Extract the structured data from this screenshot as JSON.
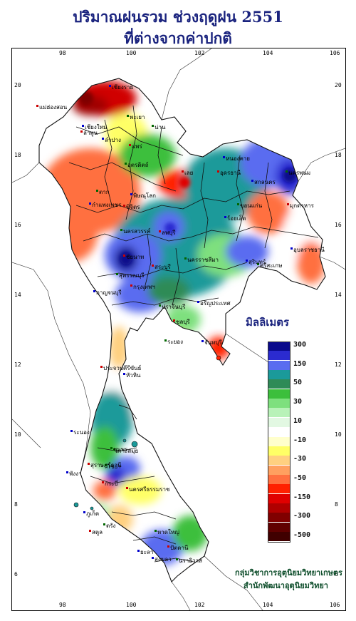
{
  "title_line1": "ปริมาณฝนรวม ช่วงฤดูฝน 2551",
  "title_line2": "ที่ต่างจากค่าปกติ",
  "lon_ticks": [
    "98",
    "100",
    "102",
    "104",
    "106"
  ],
  "lat_ticks": [
    "20",
    "18",
    "16",
    "14",
    "12",
    "10",
    "8",
    "6"
  ],
  "legend": {
    "title": "มิลลิเมตร",
    "classes": [
      {
        "label": "300",
        "color": "#0a0a8c"
      },
      {
        "label": "",
        "color": "#2b2bd0"
      },
      {
        "label": "150",
        "color": "#5a6cf0"
      },
      {
        "label": "",
        "color": "#1b9a9a"
      },
      {
        "label": "50",
        "color": "#2e8b57"
      },
      {
        "label": "",
        "color": "#3cbf3c"
      },
      {
        "label": "30",
        "color": "#7ee07e"
      },
      {
        "label": "",
        "color": "#b8f2b8"
      },
      {
        "label": "10",
        "color": "#e2f8e2"
      },
      {
        "label": "",
        "color": "#ffffff"
      },
      {
        "label": "-10",
        "color": "#ffffcc"
      },
      {
        "label": "",
        "color": "#ffff66"
      },
      {
        "label": "-30",
        "color": "#ffd080"
      },
      {
        "label": "",
        "color": "#ffa060"
      },
      {
        "label": "-50",
        "color": "#ff7040"
      },
      {
        "label": "",
        "color": "#ff2000"
      },
      {
        "label": "-150",
        "color": "#e00000"
      },
      {
        "label": "",
        "color": "#b00000"
      },
      {
        "label": "-300",
        "color": "#800000"
      },
      {
        "label": "",
        "color": "#600000"
      },
      {
        "label": "-500",
        "color": "#400000"
      }
    ]
  },
  "credit_line1": "กลุ่มวิชาการอุตุนิยมวิทยาเกษตร",
  "credit_line2": "สำนักพัฒนาอุตุนิยมวิทยา",
  "places": [
    {
      "name": "เชียงราย"
    },
    {
      "name": "แม่ฮ่องสอน"
    },
    {
      "name": "พะเยา"
    },
    {
      "name": "เชียงใหม่"
    },
    {
      "name": "ลำพูน"
    },
    {
      "name": "น่าน"
    },
    {
      "name": "ลำปาง"
    },
    {
      "name": "แพร่"
    },
    {
      "name": "อุตรดิตถ์"
    },
    {
      "name": "หนองคาย"
    },
    {
      "name": "อุดรธานี"
    },
    {
      "name": "นครพนม"
    },
    {
      "name": "สกลนคร"
    },
    {
      "name": "เลย"
    },
    {
      "name": "ตาก"
    },
    {
      "name": "พิษณุโลก"
    },
    {
      "name": "มุกดาหาร"
    },
    {
      "name": "ขอนแก่น"
    },
    {
      "name": "กำแพงเพชร"
    },
    {
      "name": "พิจิตร"
    },
    {
      "name": "นครสวรรค์"
    },
    {
      "name": "อุบลราชธานี"
    },
    {
      "name": "ลพบุรี"
    },
    {
      "name": "นครราชสีมา"
    },
    {
      "name": "สุรินทร์"
    },
    {
      "name": "ชัยนาท"
    },
    {
      "name": "สุพรรณบุรี"
    },
    {
      "name": "กาญจนบุรี"
    },
    {
      "name": "กรุงเทพฯ"
    },
    {
      "name": "ปราจีนบุรี"
    },
    {
      "name": "อรัญประเทศ"
    },
    {
      "name": "ชลบุรี"
    },
    {
      "name": "ระยอง"
    },
    {
      "name": "จันทบุรี"
    },
    {
      "name": "ประจวบคีรีขันธ์"
    },
    {
      "name": "ชุมพร"
    },
    {
      "name": "ระนอง"
    },
    {
      "name": "สุราษฎร์ธานี"
    },
    {
      "name": "เกาะสมุย"
    },
    {
      "name": "ภูเก็ต"
    },
    {
      "name": "นครศรีธรรมราช"
    },
    {
      "name": "ตรัง"
    },
    {
      "name": "สงขลา"
    },
    {
      "name": "ปัตตานี"
    },
    {
      "name": "นราธิวาส"
    },
    {
      "name": "ยะลา"
    },
    {
      "name": "สตูล"
    },
    {
      "name": "หาดใหญ่"
    },
    {
      "name": "พังงา"
    },
    {
      "name": "กระบี่"
    },
    {
      "name": "ไชยา"
    },
    {
      "name": "หัวหิน"
    },
    {
      "name": "สระบุรี"
    },
    {
      "name": "ศรีสะเกษ"
    },
    {
      "name": "ร้อยเอ็ด"
    }
  ]
}
